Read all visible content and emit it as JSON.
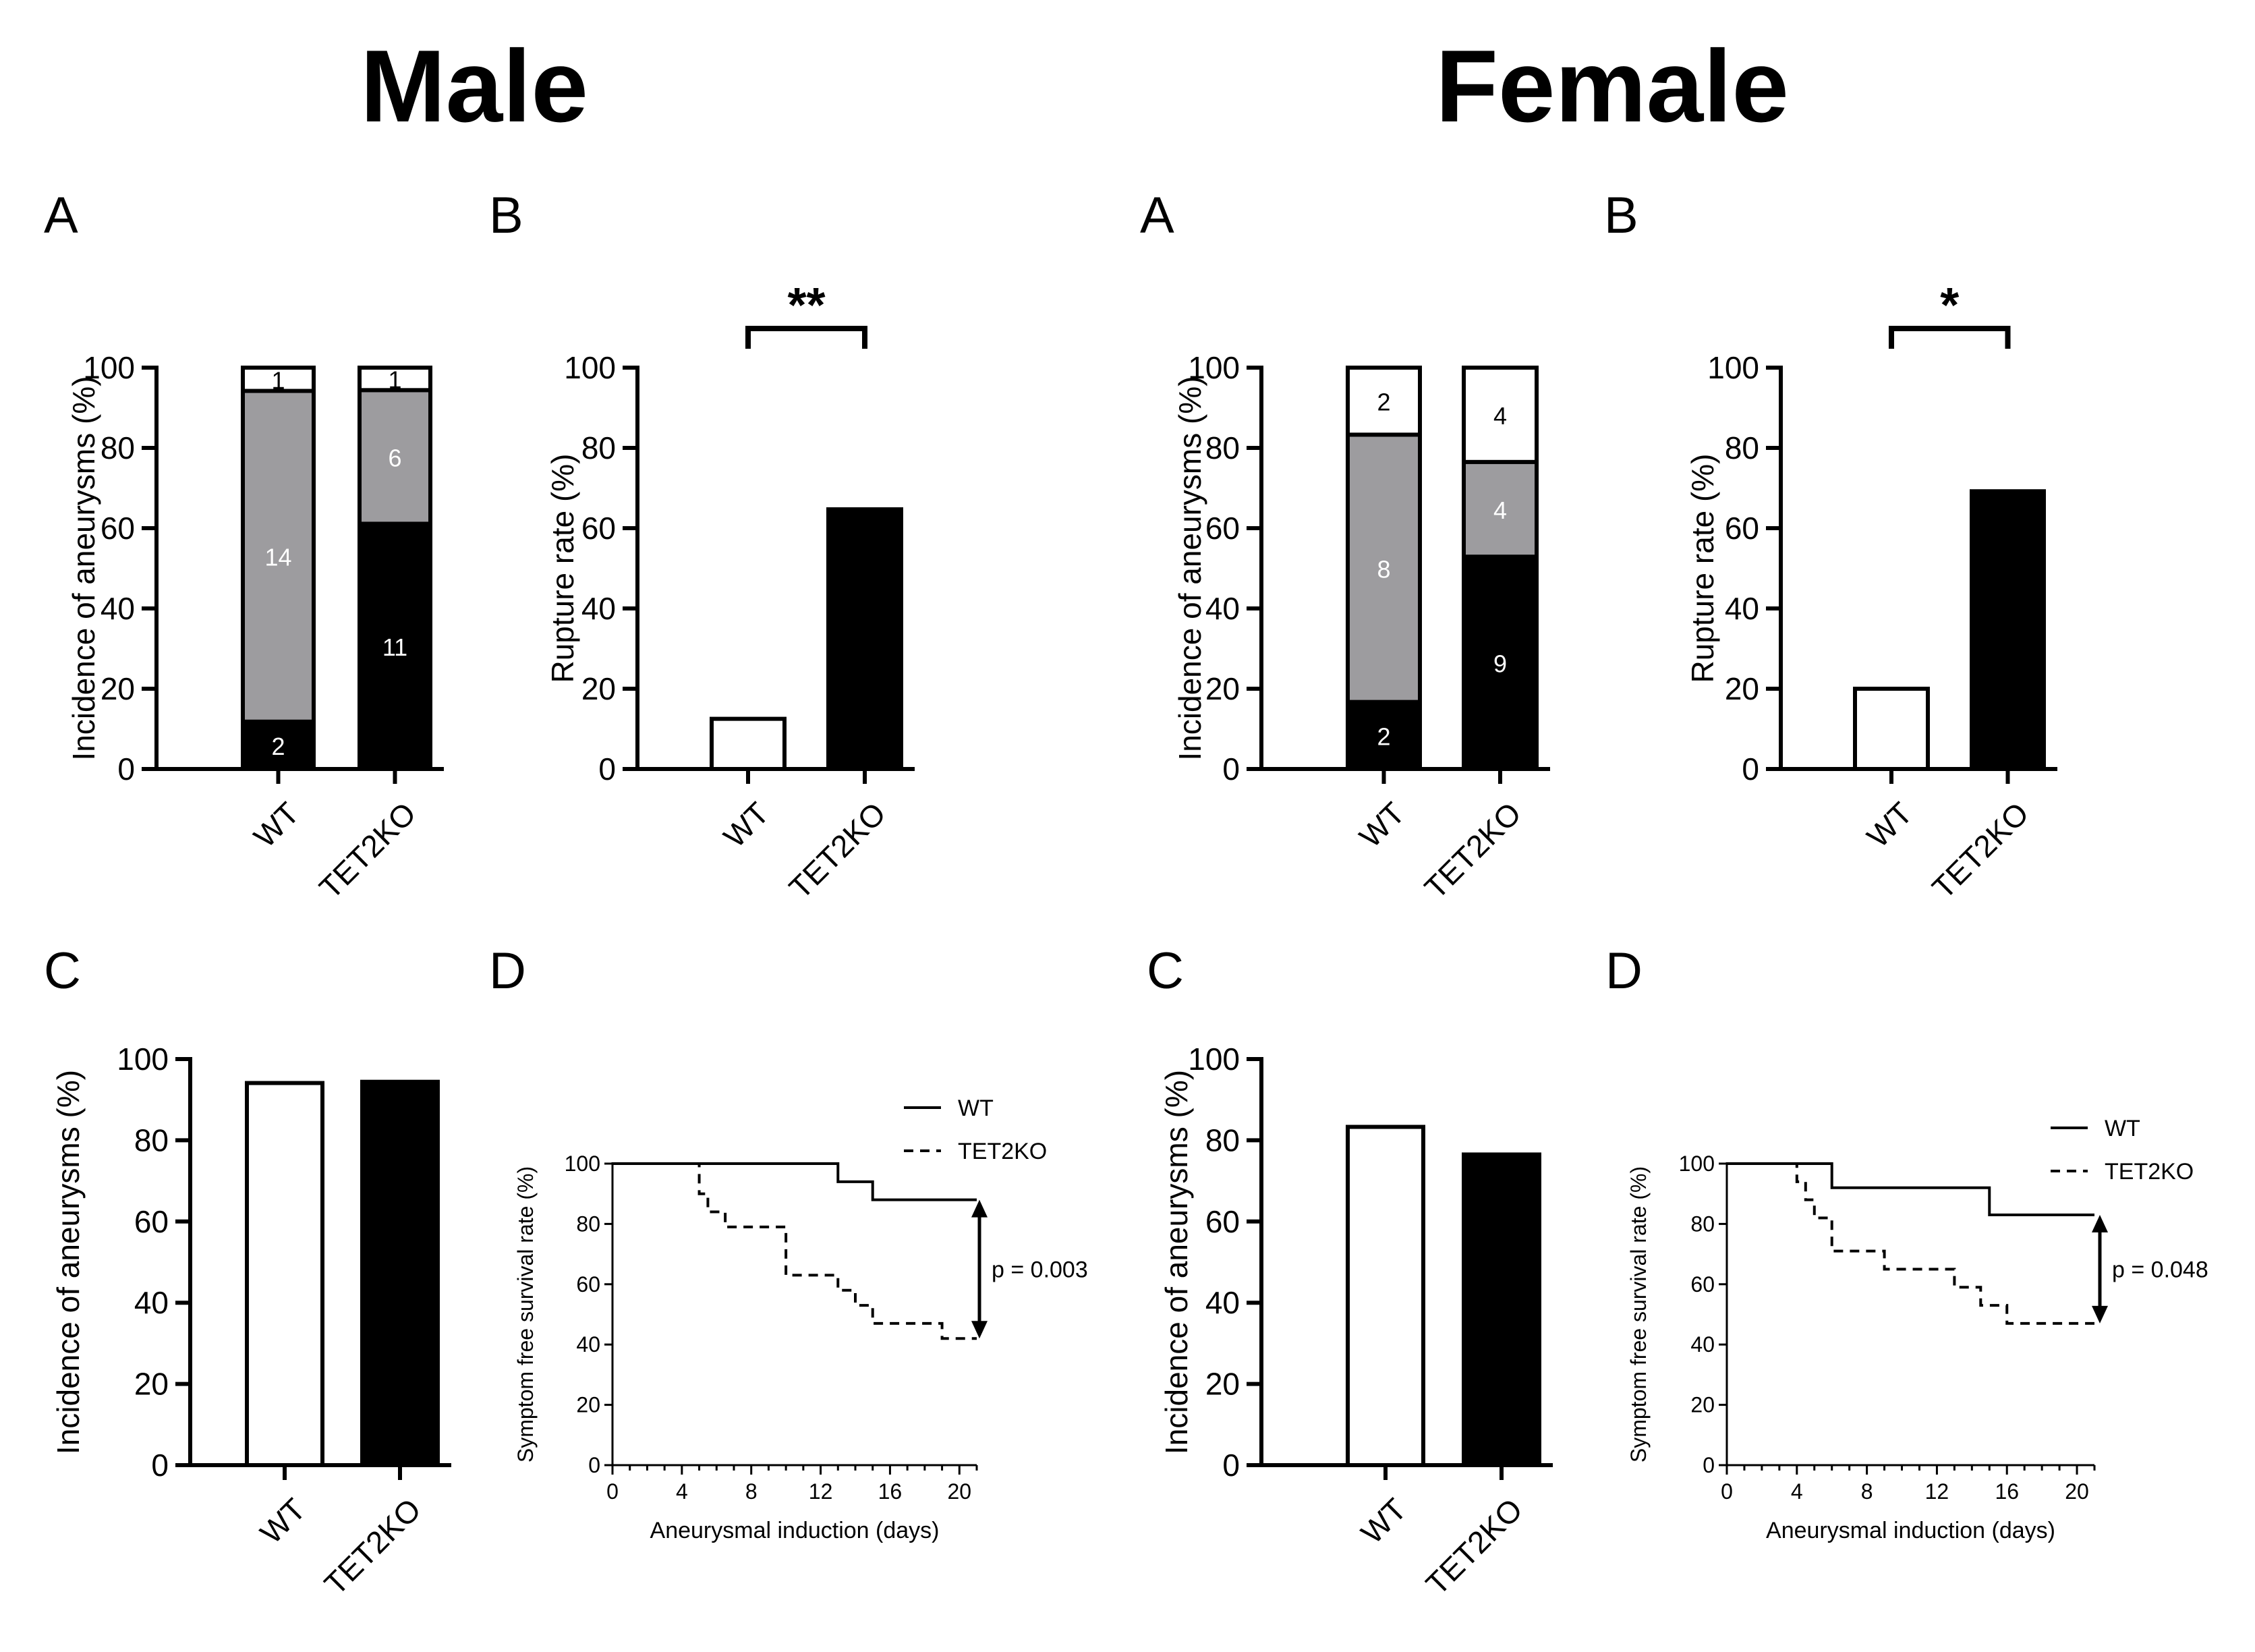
{
  "sections": [
    {
      "title": "Male"
    },
    {
      "title": "Female"
    }
  ],
  "colors": {
    "black": "#000000",
    "gray": "#9d9c9f",
    "white": "#ffffff"
  },
  "chart_data": [
    {
      "id": "male-A",
      "section": "Male",
      "panel_letter": "A",
      "type": "bar",
      "stacked": true,
      "ylabel": "Incidence of aneurysms (%)",
      "ylim": [
        0,
        100
      ],
      "yticks": [
        0,
        20,
        40,
        60,
        80,
        100
      ],
      "categories": [
        "WT",
        "TET2KO"
      ],
      "series": [
        {
          "name": "black",
          "color": "#000000",
          "values": [
            11.8,
            61.1
          ],
          "labels": [
            "2",
            "11"
          ],
          "label_color": "#ffffff"
        },
        {
          "name": "gray",
          "color": "#9d9c9f",
          "values": [
            82.4,
            33.3
          ],
          "labels": [
            "14",
            "6"
          ],
          "label_color": "#ffffff"
        },
        {
          "name": "white",
          "color": "#ffffff",
          "values": [
            5.8,
            5.6
          ],
          "labels": [
            "1",
            "1"
          ],
          "label_color": "#000000"
        }
      ]
    },
    {
      "id": "male-B",
      "section": "Male",
      "panel_letter": "B",
      "type": "bar",
      "ylabel": "Rupture rate (%)",
      "ylim": [
        0,
        100
      ],
      "yticks": [
        0,
        20,
        40,
        60,
        80,
        100
      ],
      "categories": [
        "WT",
        "TET2KO"
      ],
      "values": [
        12.5,
        64.7
      ],
      "colors": [
        "#ffffff",
        "#000000"
      ],
      "significance": "**"
    },
    {
      "id": "male-C",
      "section": "Male",
      "panel_letter": "C",
      "type": "bar",
      "ylabel": "Incidence of aneurysms (%)",
      "ylim": [
        0,
        100
      ],
      "yticks": [
        0,
        20,
        40,
        60,
        80,
        100
      ],
      "categories": [
        "WT",
        "TET2KO"
      ],
      "values": [
        94.1,
        94.4
      ],
      "colors": [
        "#ffffff",
        "#000000"
      ]
    },
    {
      "id": "male-D",
      "section": "Male",
      "panel_letter": "D",
      "type": "line",
      "step": true,
      "ylabel": "Symptom free survival rate (%)",
      "xlabel": "Aneurysmal induction (days)",
      "xlim": [
        0,
        21
      ],
      "xticks": [
        0,
        4,
        8,
        12,
        16,
        20
      ],
      "ylim": [
        0,
        100
      ],
      "yticks": [
        0,
        20,
        40,
        60,
        80,
        100
      ],
      "series": [
        {
          "name": "WT",
          "dash": "solid",
          "x": [
            0,
            13,
            15,
            21
          ],
          "y": [
            100,
            94,
            88,
            88
          ]
        },
        {
          "name": "TET2KO",
          "dash": "dashed",
          "x": [
            0,
            5,
            5.5,
            6.5,
            10,
            13,
            14,
            15,
            19,
            21
          ],
          "y": [
            100,
            90,
            84,
            79,
            63,
            58,
            53,
            47,
            42,
            42
          ]
        }
      ],
      "annotation": {
        "text": "p = 0.003",
        "y_range": [
          42,
          88
        ]
      }
    },
    {
      "id": "female-A",
      "section": "Female",
      "panel_letter": "A",
      "type": "bar",
      "stacked": true,
      "ylabel": "Incidence of aneurysms (%)",
      "ylim": [
        0,
        100
      ],
      "yticks": [
        0,
        20,
        40,
        60,
        80,
        100
      ],
      "categories": [
        "WT",
        "TET2KO"
      ],
      "series": [
        {
          "name": "black",
          "color": "#000000",
          "values": [
            16.7,
            52.9
          ],
          "labels": [
            "2",
            "9"
          ],
          "label_color": "#ffffff"
        },
        {
          "name": "gray",
          "color": "#9d9c9f",
          "values": [
            66.6,
            23.6
          ],
          "labels": [
            "8",
            "4"
          ],
          "label_color": "#ffffff"
        },
        {
          "name": "white",
          "color": "#ffffff",
          "values": [
            16.7,
            23.5
          ],
          "labels": [
            "2",
            "4"
          ],
          "label_color": "#000000"
        }
      ]
    },
    {
      "id": "female-B",
      "section": "Female",
      "panel_letter": "B",
      "type": "bar",
      "ylabel": "Rupture rate (%)",
      "ylim": [
        0,
        100
      ],
      "yticks": [
        0,
        20,
        40,
        60,
        80,
        100
      ],
      "categories": [
        "WT",
        "TET2KO"
      ],
      "values": [
        20.0,
        69.2
      ],
      "colors": [
        "#ffffff",
        "#000000"
      ],
      "significance": "*"
    },
    {
      "id": "female-C",
      "section": "Female",
      "panel_letter": "C",
      "type": "bar",
      "ylabel": "Incidence of aneurysms (%)",
      "ylim": [
        0,
        100
      ],
      "yticks": [
        0,
        20,
        40,
        60,
        80,
        100
      ],
      "categories": [
        "WT",
        "TET2KO"
      ],
      "values": [
        83.3,
        76.5
      ],
      "colors": [
        "#ffffff",
        "#000000"
      ]
    },
    {
      "id": "female-D",
      "section": "Female",
      "panel_letter": "D",
      "type": "line",
      "step": true,
      "ylabel": "Symptom free survival rate (%)",
      "xlabel": "Aneurysmal induction (days)",
      "xlim": [
        0,
        21
      ],
      "xticks": [
        0,
        4,
        8,
        12,
        16,
        20
      ],
      "ylim": [
        0,
        100
      ],
      "yticks": [
        0,
        20,
        40,
        60,
        80,
        100
      ],
      "series": [
        {
          "name": "WT",
          "dash": "solid",
          "x": [
            0,
            6,
            15,
            21
          ],
          "y": [
            100,
            92,
            83,
            83
          ]
        },
        {
          "name": "TET2KO",
          "dash": "dashed",
          "x": [
            0,
            4,
            4.5,
            5,
            6,
            9,
            13,
            14.5,
            16,
            21
          ],
          "y": [
            100,
            94,
            88,
            82,
            71,
            65,
            59,
            53,
            47,
            47
          ]
        }
      ],
      "annotation": {
        "text": "p = 0.048",
        "y_range": [
          47,
          83
        ]
      }
    }
  ]
}
